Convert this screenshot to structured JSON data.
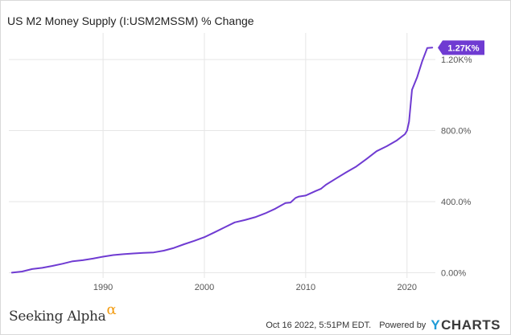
{
  "title": "US M2 Money Supply (I:USM2MSSM) % Change",
  "brand": {
    "logo_name": "Seeking Alpha",
    "logo_alpha": "α"
  },
  "footer": {
    "timestamp": "Oct 16 2022, 5:51PM EDT.",
    "powered_by": "Powered by",
    "ycharts_y": "Y",
    "ycharts_rest": "CHARTS"
  },
  "colors": {
    "line": "#6f3bd2",
    "callout": "#6f3bd2",
    "grid": "#e6e6e6",
    "axis_text": "#555555"
  },
  "chart_data": {
    "type": "line",
    "title": "US M2 Money Supply (I:USM2MSSM) % Change",
    "xlabel": "",
    "ylabel": "",
    "x_ticks": [
      1990,
      2000,
      2010,
      2020
    ],
    "y_ticks": [
      0,
      400,
      800,
      1200
    ],
    "y_tick_labels": [
      "0.00%",
      "400.0%",
      "800.0%",
      "1.20K%"
    ],
    "xlim": [
      1980.7,
      2022.8
    ],
    "ylim": [
      -30,
      1350
    ],
    "grid": true,
    "last_value_label": "1.27K%",
    "series": [
      {
        "name": "",
        "x": [
          1981.0,
          1982.0,
          1983.0,
          1984.0,
          1985.0,
          1986.0,
          1987.0,
          1988.0,
          1989.0,
          1990.0,
          1991.0,
          1992.0,
          1993.0,
          1994.0,
          1995.0,
          1996.0,
          1997.0,
          1998.0,
          1999.0,
          2000.0,
          2001.0,
          2002.0,
          2003.0,
          2004.0,
          2005.0,
          2006.0,
          2007.0,
          2008.0,
          2008.5,
          2009.0,
          2009.3,
          2010.0,
          2011.0,
          2011.5,
          2012.0,
          2013.0,
          2014.0,
          2015.0,
          2016.0,
          2017.0,
          2018.0,
          2019.0,
          2019.8,
          2020.0,
          2020.2,
          2020.5,
          2021.0,
          2021.5,
          2022.0,
          2022.5
        ],
        "y": [
          0,
          6,
          20,
          27,
          38,
          50,
          64,
          70,
          79,
          90,
          99,
          104,
          108,
          111,
          114,
          124,
          139,
          160,
          179,
          200,
          227,
          255,
          283,
          296,
          312,
          334,
          360,
          392,
          395,
          421,
          428,
          434,
          460,
          472,
          495,
          530,
          565,
          598,
          640,
          684,
          712,
          745,
          780,
          800,
          850,
          1030,
          1100,
          1190,
          1265,
          1267
        ]
      }
    ]
  }
}
